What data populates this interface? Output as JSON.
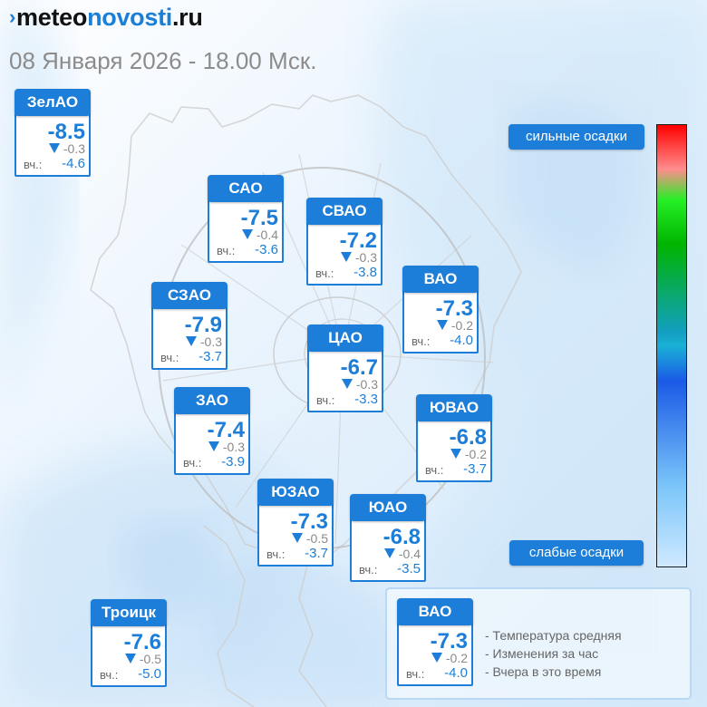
{
  "header": {
    "logo_parts": [
      "meteo",
      "novosti",
      ".ru"
    ],
    "datetime": "08 Января 2026 - 18.00 Мск."
  },
  "districts": [
    {
      "id": "zelao",
      "label": "ЗелАО",
      "temp": "-8.5",
      "change": "-0.3",
      "yesterday_label": "вч.:",
      "yesterday": "-4.6"
    },
    {
      "id": "sao",
      "label": "САО",
      "temp": "-7.5",
      "change": "-0.4",
      "yesterday_label": "вч.:",
      "yesterday": "-3.6"
    },
    {
      "id": "svao",
      "label": "СВАО",
      "temp": "-7.2",
      "change": "-0.3",
      "yesterday_label": "вч.:",
      "yesterday": "-3.8"
    },
    {
      "id": "vao",
      "label": "ВАО",
      "temp": "-7.3",
      "change": "-0.2",
      "yesterday_label": "вч.:",
      "yesterday": "-4.0"
    },
    {
      "id": "szao",
      "label": "СЗАО",
      "temp": "-7.9",
      "change": "-0.3",
      "yesterday_label": "вч.:",
      "yesterday": "-3.7"
    },
    {
      "id": "tsao",
      "label": "ЦАО",
      "temp": "-6.7",
      "change": "-0.3",
      "yesterday_label": "вч.:",
      "yesterday": "-3.3"
    },
    {
      "id": "zao",
      "label": "ЗАО",
      "temp": "-7.4",
      "change": "-0.3",
      "yesterday_label": "вч.:",
      "yesterday": "-3.9"
    },
    {
      "id": "yuvao",
      "label": "ЮВАО",
      "temp": "-6.8",
      "change": "-0.2",
      "yesterday_label": "вч.:",
      "yesterday": "-3.7"
    },
    {
      "id": "yuzao",
      "label": "ЮЗАО",
      "temp": "-7.3",
      "change": "-0.5",
      "yesterday_label": "вч.:",
      "yesterday": "-3.7"
    },
    {
      "id": "yuao",
      "label": "ЮАО",
      "temp": "-6.8",
      "change": "-0.4",
      "yesterday_label": "вч.:",
      "yesterday": "-3.5"
    },
    {
      "id": "troitsk",
      "label": "Троицк",
      "temp": "-7.6",
      "change": "-0.5",
      "yesterday_label": "вч.:",
      "yesterday": "-5.0"
    }
  ],
  "legend": {
    "example": {
      "label": "ВАО",
      "temp": "-7.3",
      "change": "-0.2",
      "yesterday_label": "вч.:",
      "yesterday": "-4.0"
    },
    "items": [
      "- Температура средняя",
      "- Изменения за час",
      "- Вчера в это время"
    ]
  },
  "precip_scale": {
    "top_label": "сильные осадки",
    "bottom_label": "слабые осадки",
    "colors": [
      "#ff0000",
      "#ff8c8c",
      "#25ef25",
      "#00b400",
      "#1ab0d6",
      "#1a5ae6",
      "#7cc6fa",
      "#cfe9ff"
    ]
  },
  "colors": {
    "accent": "#1c7ed8",
    "gray_text": "#8a8a8a"
  },
  "icons": {
    "change": "down-triangle-icon",
    "logo_mark": "logo-arrow-icon"
  }
}
